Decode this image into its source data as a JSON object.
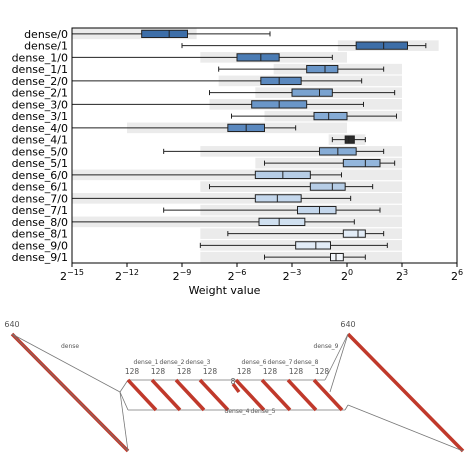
{
  "chart_data": [
    {
      "type": "box",
      "xlabel": "Weight value",
      "xscale": "log2",
      "xlim": [
        -15,
        6
      ],
      "x_ticks": [
        -15,
        -12,
        -9,
        -6,
        -3,
        0,
        3,
        6
      ],
      "grid": false,
      "rows": [
        {
          "label": "dense/0",
          "range": [
            -15.0,
            -8.2
          ],
          "box": {
            "whislo": -15.0,
            "q1": -11.2,
            "med": -9.7,
            "q3": -8.7,
            "whishi": -4.2
          },
          "color": "#3d6ea8"
        },
        {
          "label": "dense/1",
          "range": [
            -0.5,
            5.0
          ],
          "box": {
            "whislo": -9.0,
            "q1": 0.5,
            "med": 2.0,
            "q3": 3.3,
            "whishi": 4.3
          },
          "color": "#3d6ea8"
        },
        {
          "label": "dense_1/0",
          "range": [
            -8.0,
            0.0
          ],
          "box": {
            "whislo": -15.0,
            "q1": -6.0,
            "med": -4.7,
            "q3": -3.7,
            "whishi": -0.8
          },
          "color": "#4b7cb4"
        },
        {
          "label": "dense_1/1",
          "range": [
            -4.0,
            3.0
          ],
          "box": {
            "whislo": -7.0,
            "q1": -2.2,
            "med": -1.2,
            "q3": -0.5,
            "whishi": 2.0
          },
          "color": "#6a96c8"
        },
        {
          "label": "dense_2/0",
          "range": [
            -7.0,
            3.0
          ],
          "box": {
            "whislo": -15.0,
            "q1": -4.7,
            "med": -3.7,
            "q3": -2.5,
            "whishi": 0.8
          },
          "color": "#5a88be"
        },
        {
          "label": "dense_2/1",
          "range": [
            -5.0,
            3.0
          ],
          "box": {
            "whislo": -7.5,
            "q1": -3.0,
            "med": -1.5,
            "q3": -0.8,
            "whishi": 2.6
          },
          "color": "#7aa3d0"
        },
        {
          "label": "dense_3/0",
          "range": [
            -7.5,
            3.0
          ],
          "box": {
            "whislo": -15.0,
            "q1": -5.2,
            "med": -3.7,
            "q3": -2.2,
            "whishi": 0.9
          },
          "color": "#6a96c8"
        },
        {
          "label": "dense_3/1",
          "range": [
            -4.5,
            3.0
          ],
          "box": {
            "whislo": -6.3,
            "q1": -1.8,
            "med": -1.0,
            "q3": 0.0,
            "whishi": 2.7
          },
          "color": "#86acd6"
        },
        {
          "label": "dense_4/0",
          "range": [
            -12.0,
            0.0
          ],
          "box": {
            "whislo": -15.0,
            "q1": -6.5,
            "med": -5.5,
            "q3": -4.5,
            "whishi": -2.8
          },
          "color": "#5a88be"
        },
        {
          "label": "dense_4/1",
          "range": [
            -1.0,
            1.0
          ],
          "box": {
            "whislo": -0.8,
            "q1": -0.1,
            "med": 0.1,
            "q3": 0.4,
            "whishi": 1.0
          },
          "color": "#2b2b2b"
        },
        {
          "label": "dense_5/0",
          "range": [
            -8.0,
            3.0
          ],
          "box": {
            "whislo": -10.0,
            "q1": -1.5,
            "med": -0.5,
            "q3": 0.5,
            "whishi": 2.0
          },
          "color": "#86acd6"
        },
        {
          "label": "dense_5/1",
          "range": [
            -5.0,
            3.0
          ],
          "box": {
            "whislo": -4.5,
            "q1": -0.2,
            "med": 1.0,
            "q3": 1.8,
            "whishi": 2.6
          },
          "color": "#93b6dc"
        },
        {
          "label": "dense_6/0",
          "range": [
            -15.0,
            3.0
          ],
          "box": {
            "whislo": -15.0,
            "q1": -5.0,
            "med": -3.5,
            "q3": -2.0,
            "whishi": -0.3
          },
          "color": "#b6cde6"
        },
        {
          "label": "dense_6/1",
          "range": [
            -8.0,
            3.0
          ],
          "box": {
            "whislo": -7.5,
            "q1": -2.0,
            "med": -0.8,
            "q3": -0.1,
            "whishi": 1.4
          },
          "color": "#b6cde6"
        },
        {
          "label": "dense_7/0",
          "range": [
            -15.0,
            3.0
          ],
          "box": {
            "whislo": -15.0,
            "q1": -5.0,
            "med": -3.8,
            "q3": -2.5,
            "whishi": 0.2
          },
          "color": "#c4d7ec"
        },
        {
          "label": "dense_7/1",
          "range": [
            -8.0,
            3.0
          ],
          "box": {
            "whislo": -10.0,
            "q1": -2.7,
            "med": -1.5,
            "q3": -0.6,
            "whishi": 1.8
          },
          "color": "#c4d7ec"
        },
        {
          "label": "dense_8/0",
          "range": [
            -15.0,
            3.0
          ],
          "box": {
            "whislo": -15.0,
            "q1": -4.8,
            "med": -3.7,
            "q3": -2.3,
            "whishi": 0.4
          },
          "color": "#d0e0f0"
        },
        {
          "label": "dense_8/1",
          "range": [
            -8.0,
            3.0
          ],
          "box": {
            "whislo": -6.5,
            "q1": -0.2,
            "med": 0.6,
            "q3": 1.0,
            "whishi": 2.0
          },
          "color": "#e2ecf7"
        },
        {
          "label": "dense_9/0",
          "range": [
            -8.0,
            3.0
          ],
          "box": {
            "whislo": -8.0,
            "q1": -2.8,
            "med": -1.7,
            "q3": -0.9,
            "whishi": 2.2
          },
          "color": "#e2ecf7"
        },
        {
          "label": "dense_9/1",
          "range": [
            -8.0,
            3.0
          ],
          "box": {
            "whislo": -4.5,
            "q1": -0.9,
            "med": -0.6,
            "q3": -0.2,
            "whishi": 1.0
          },
          "color": "#f2f6fb"
        }
      ]
    },
    {
      "type": "diagram",
      "top_labels": [
        "640",
        "640"
      ],
      "layer_labels": [
        "dense",
        "dense_1",
        "dense_2",
        "dense_3",
        "dense_6",
        "dense_7",
        "dense_8",
        "dense_9",
        "dense_4",
        "dense_5"
      ],
      "widths": [
        "128",
        "128",
        "128",
        "128",
        "8",
        "128",
        "128",
        "128",
        "128"
      ],
      "colors": {
        "bar": "#c0392b",
        "line": "#777777"
      }
    }
  ]
}
